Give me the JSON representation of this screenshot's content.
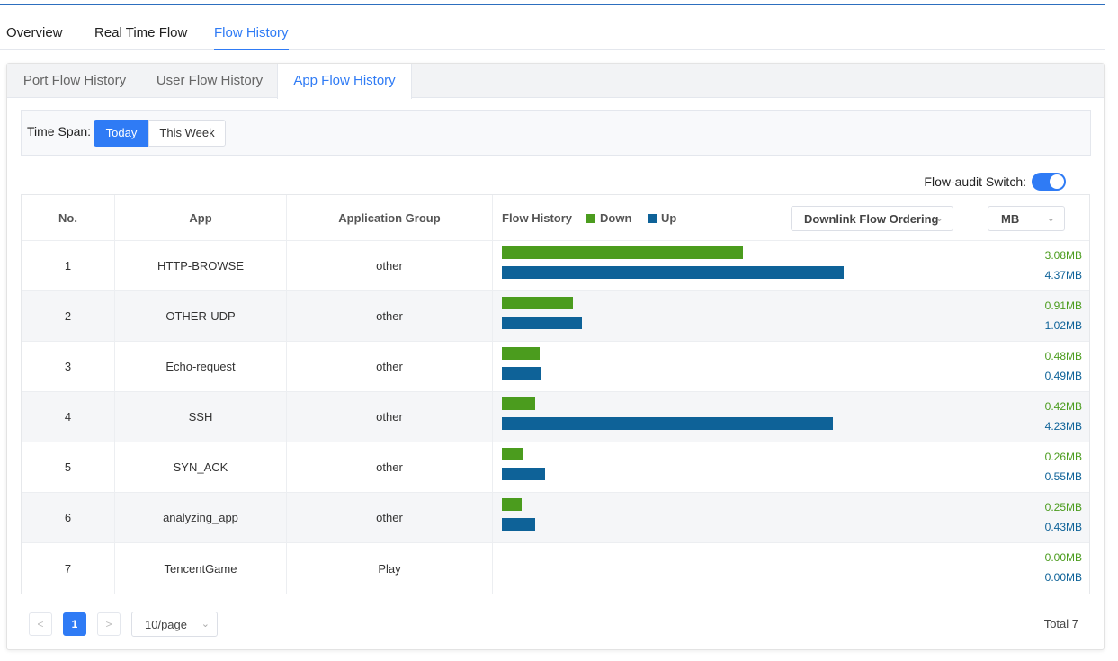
{
  "top_tabs": [
    "Overview",
    "Real Time Flow",
    "Flow History"
  ],
  "sub_tabs": [
    "Port Flow History",
    "User Flow History",
    "App Flow History"
  ],
  "time_span": {
    "label": "Time Span:",
    "options": [
      "Today",
      "This Week"
    ],
    "selected": "Today"
  },
  "flow_audit": {
    "label": "Flow-audit Switch:",
    "enabled": true
  },
  "table": {
    "headers": {
      "no": "No.",
      "app": "App",
      "group": "Application Group",
      "flow": "Flow History"
    },
    "legend": {
      "down": "Down",
      "up": "Up"
    },
    "ordering": "Downlink Flow Ordering",
    "unit": "MB",
    "rows": [
      {
        "no": "1",
        "app": "HTTP-BROWSE",
        "group": "other",
        "down": "3.08MB",
        "up": "4.37MB"
      },
      {
        "no": "2",
        "app": "OTHER-UDP",
        "group": "other",
        "down": "0.91MB",
        "up": "1.02MB"
      },
      {
        "no": "3",
        "app": "Echo-request",
        "group": "other",
        "down": "0.48MB",
        "up": "0.49MB"
      },
      {
        "no": "4",
        "app": "SSH",
        "group": "other",
        "down": "0.42MB",
        "up": "4.23MB"
      },
      {
        "no": "5",
        "app": "SYN_ACK",
        "group": "other",
        "down": "0.26MB",
        "up": "0.55MB"
      },
      {
        "no": "6",
        "app": "analyzing_app",
        "group": "other",
        "down": "0.25MB",
        "up": "0.43MB"
      },
      {
        "no": "7",
        "app": "TencentGame",
        "group": "Play",
        "down": "0.00MB",
        "up": "0.00MB"
      }
    ],
    "flow_values": [
      {
        "down": 3.08,
        "up": 4.37
      },
      {
        "down": 0.91,
        "up": 1.02
      },
      {
        "down": 0.48,
        "up": 0.49
      },
      {
        "down": 0.42,
        "up": 4.23
      },
      {
        "down": 0.26,
        "up": 0.55
      },
      {
        "down": 0.25,
        "up": 0.43
      },
      {
        "down": 0.0,
        "up": 0.0
      }
    ]
  },
  "pagination": {
    "prev_icon": "chevron-left-icon",
    "next_icon": "chevron-right-icon",
    "current_page": "1",
    "page_size": "10/page",
    "total": "Total 7"
  },
  "colors": {
    "accent": "#2f7bf5",
    "down": "#4b9c1e",
    "up": "#0e6298"
  }
}
